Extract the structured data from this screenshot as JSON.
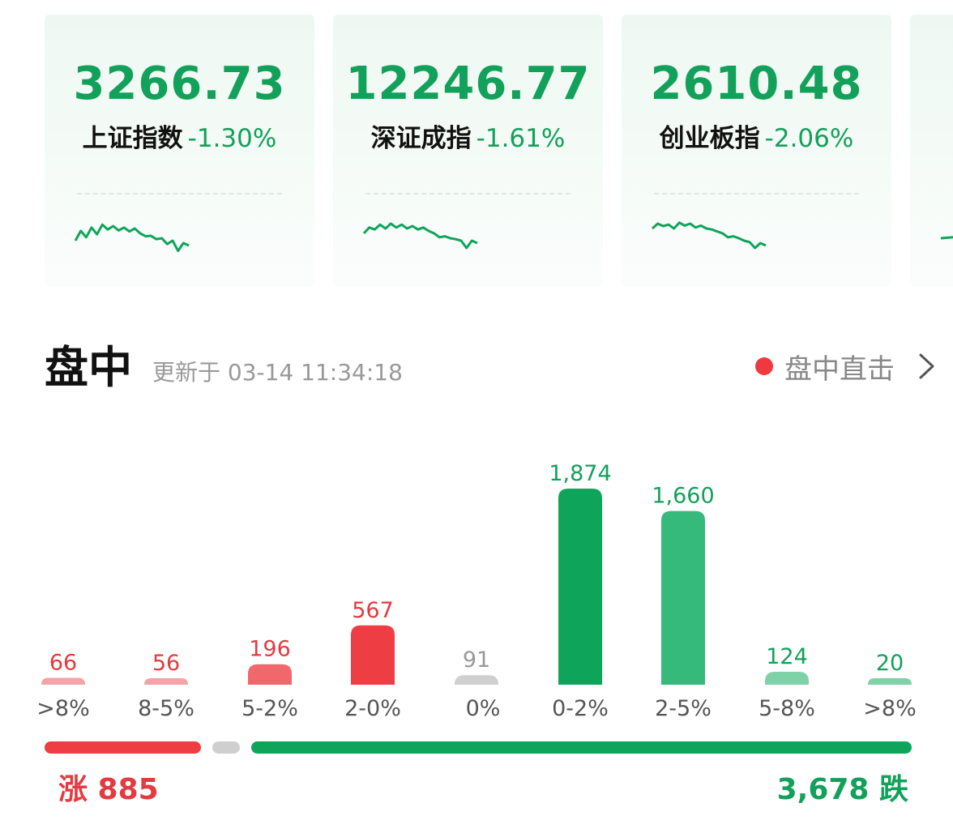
{
  "indices": [
    {
      "value": "3266.73",
      "name": "上证指数",
      "change": "-1.30%",
      "sparkline": [
        0.45,
        0.25,
        0.38,
        0.18,
        0.32,
        0.12,
        0.22,
        0.15,
        0.24,
        0.18,
        0.26,
        0.2,
        0.3,
        0.36,
        0.35,
        0.42,
        0.4,
        0.52,
        0.45,
        0.66,
        0.5,
        0.55
      ]
    },
    {
      "value": "12246.77",
      "name": "深证成指",
      "change": "-1.61%",
      "sparkline": [
        0.3,
        0.18,
        0.22,
        0.12,
        0.2,
        0.1,
        0.18,
        0.12,
        0.2,
        0.15,
        0.22,
        0.18,
        0.25,
        0.3,
        0.38,
        0.36,
        0.4,
        0.42,
        0.45,
        0.6,
        0.45,
        0.5
      ]
    },
    {
      "value": "2610.48",
      "name": "创业板指",
      "change": "-2.06%",
      "sparkline": [
        0.2,
        0.1,
        0.15,
        0.12,
        0.2,
        0.08,
        0.14,
        0.1,
        0.18,
        0.14,
        0.2,
        0.22,
        0.26,
        0.3,
        0.38,
        0.36,
        0.4,
        0.45,
        0.48,
        0.6,
        0.5,
        0.55
      ]
    },
    {
      "value": "",
      "name": "",
      "change": "",
      "sparkline": [
        0.4,
        0.3,
        0.35
      ]
    }
  ],
  "section": {
    "title": "盘中",
    "updated": "更新于 03-14 11:34:18",
    "live_label": "盘中直击"
  },
  "colors": {
    "up_strong": "#ef3d44",
    "up_medium": "#f1686c",
    "up_light": "#f5a3a6",
    "flat": "#cfcfcf",
    "down_strong": "#0ea55a",
    "down_medium": "#35ba7c",
    "down_light": "#7fd2a8",
    "up_text": "#e33b40",
    "down_text": "#12a15a",
    "flat_text": "#999999"
  },
  "chart_data": {
    "type": "bar",
    "categories": [
      ">8%",
      "8-5%",
      "5-2%",
      "2-0%",
      "0%",
      "0-2%",
      "2-5%",
      "5-8%",
      ">8%"
    ],
    "values": [
      66,
      56,
      196,
      567,
      91,
      1874,
      1660,
      124,
      20
    ],
    "value_labels": [
      "66",
      "56",
      "196",
      "567",
      "91",
      "1,874",
      "1,660",
      "124",
      "20"
    ],
    "groups": [
      "up",
      "up",
      "up",
      "up",
      "flat",
      "down",
      "down",
      "down",
      "down"
    ],
    "shades": [
      "up_light",
      "up_light",
      "up_medium",
      "up_strong",
      "flat",
      "down_strong",
      "down_medium",
      "down_light",
      "down_light"
    ],
    "ylim": [
      0,
      1874
    ]
  },
  "summary": {
    "up_label": "涨 885",
    "down_label": "3,678 跌"
  }
}
